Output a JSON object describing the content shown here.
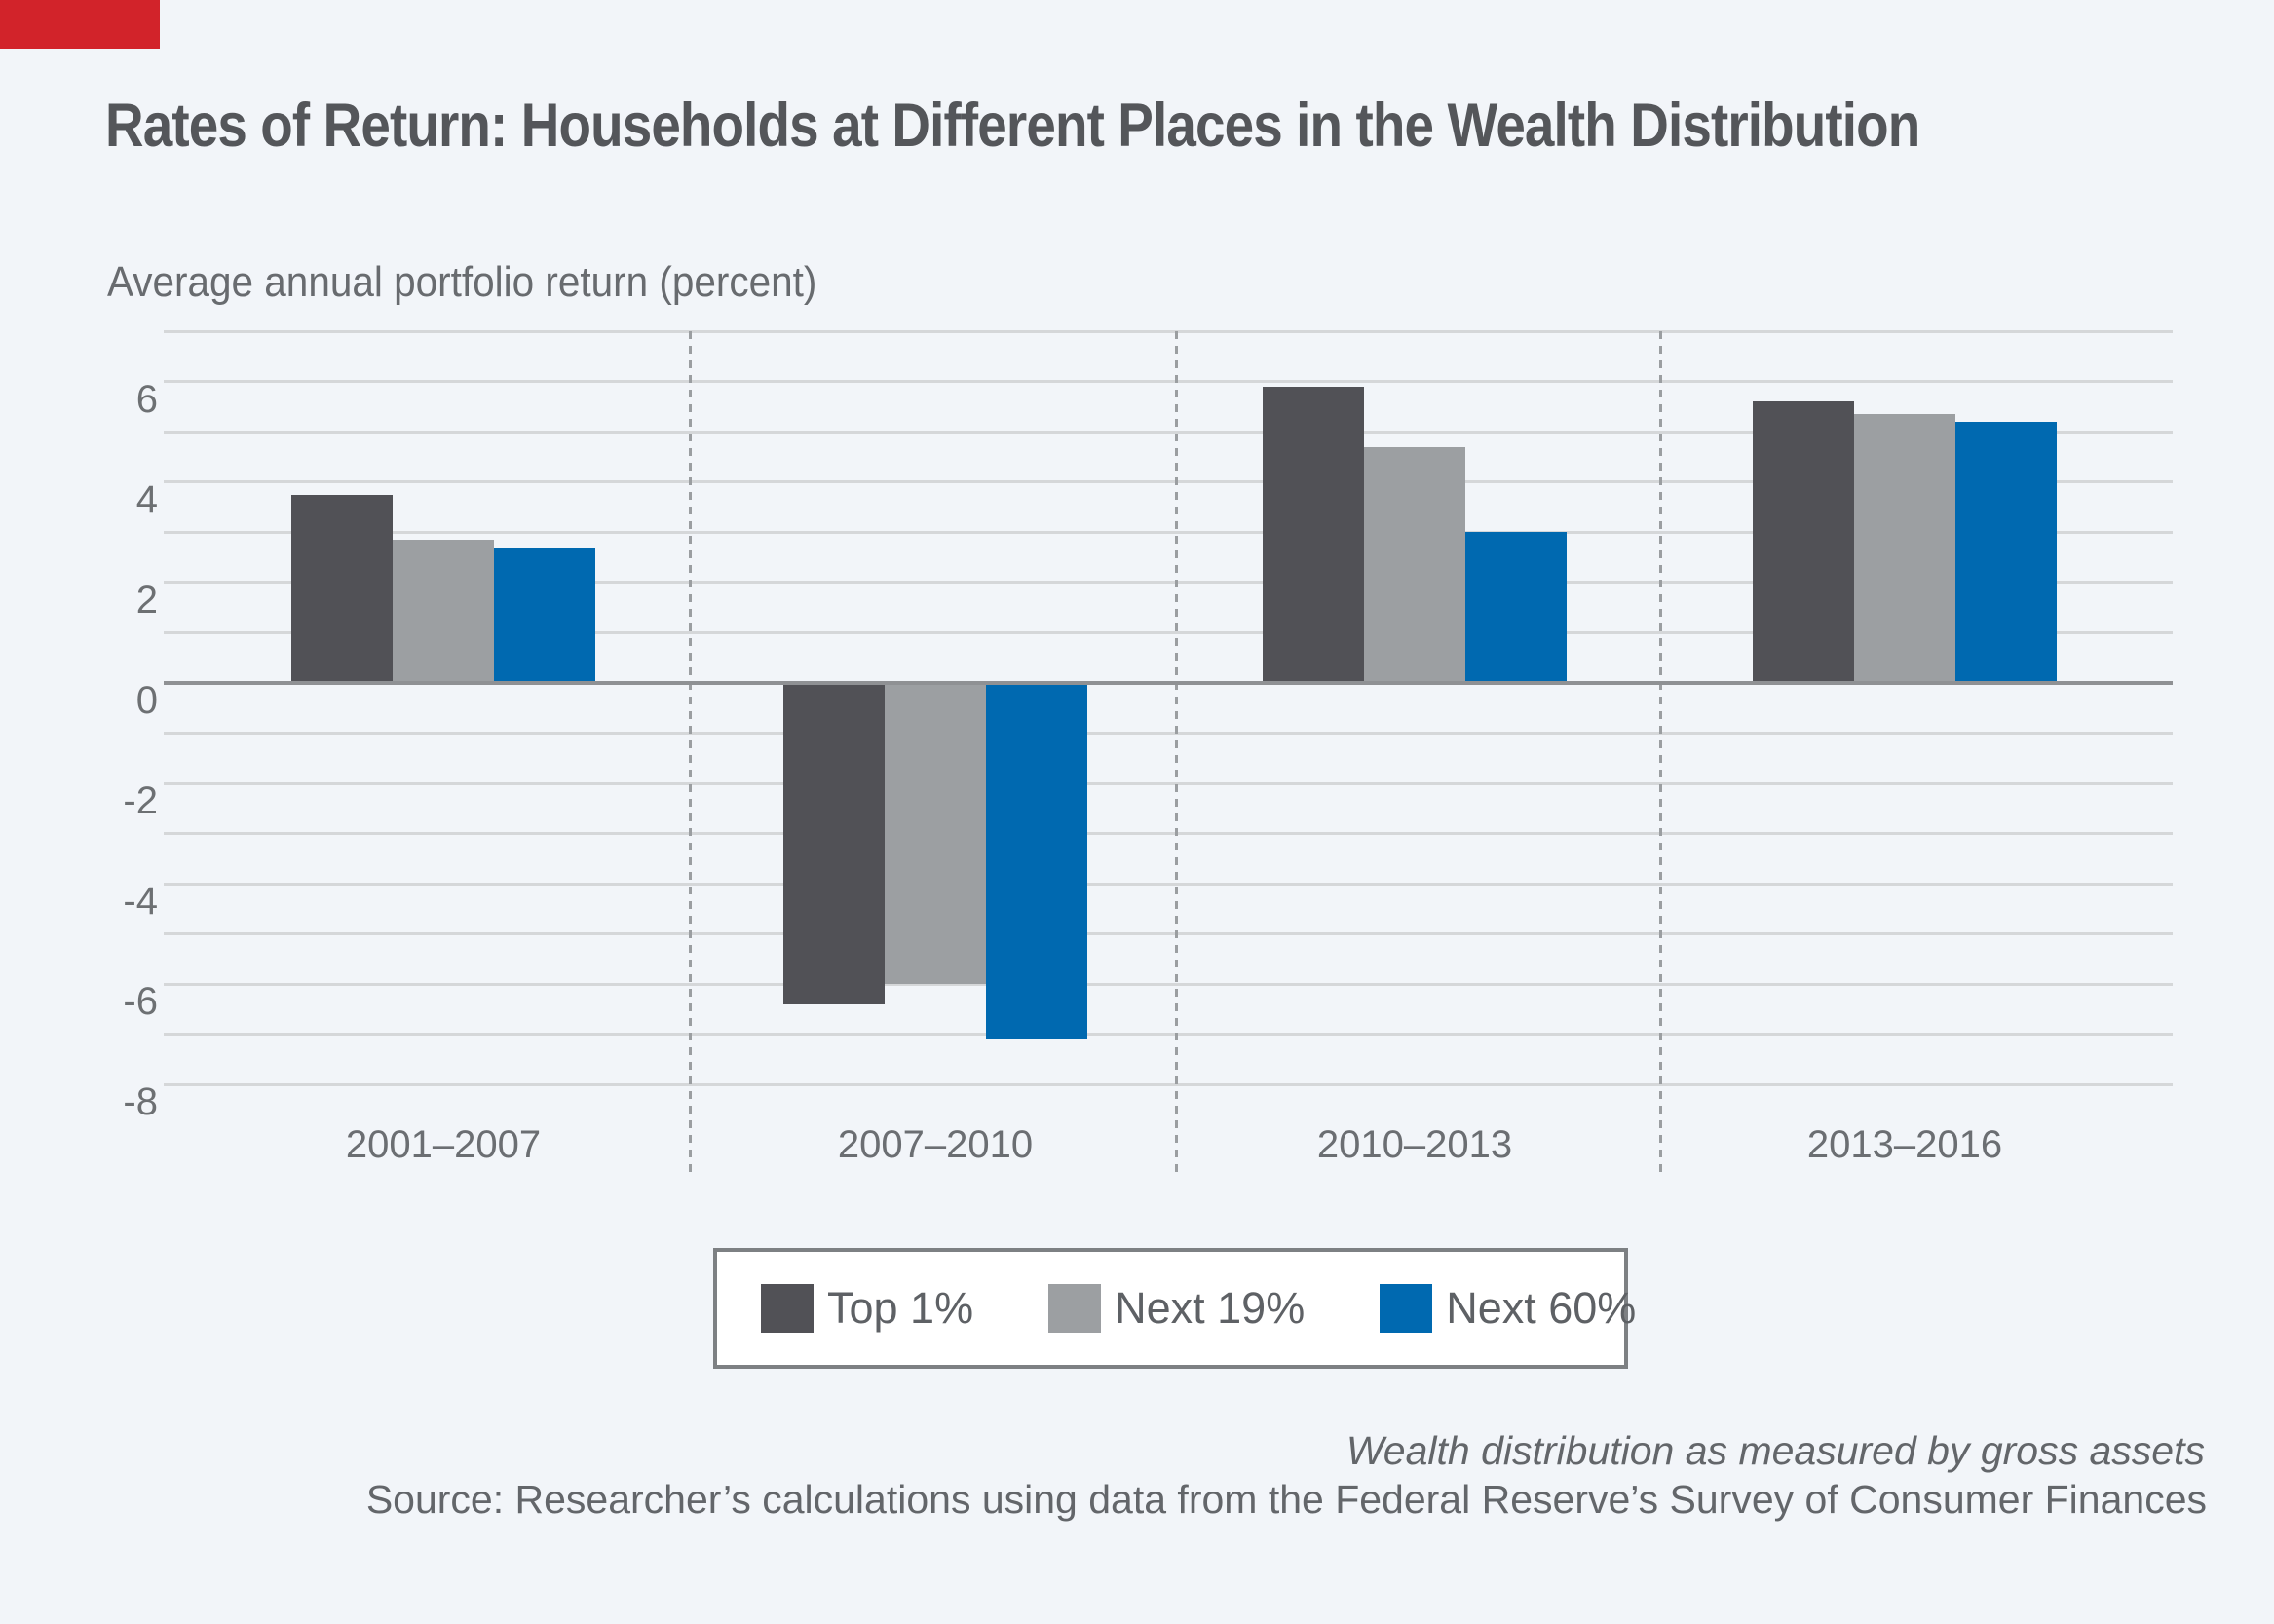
{
  "page": {
    "background": "#f2f5f9",
    "accent_bar_color": "#d2232a"
  },
  "title": "Rates of Return: Households at Different Places in the Wealth Distribution",
  "subtitle": "Average annual portfolio return (percent)",
  "chart_data": {
    "type": "bar",
    "categories": [
      "2001–2007",
      "2007–2010",
      "2010–2013",
      "2013–2016"
    ],
    "series": [
      {
        "name": "Top 1%",
        "color": "#515156",
        "values": [
          3.75,
          -6.4,
          5.9,
          5.6
        ]
      },
      {
        "name": "Next 19%",
        "color": "#9c9fa2",
        "values": [
          2.85,
          -6.0,
          4.7,
          5.35
        ]
      },
      {
        "name": "Next 60%",
        "color": "#0069b0",
        "values": [
          2.7,
          -7.1,
          3.0,
          5.2
        ]
      }
    ],
    "title": "Rates of Return: Households at Different Places in the Wealth Distribution",
    "xlabel": "",
    "ylabel": "Average annual portfolio return (percent)",
    "ylim": [
      -8,
      7
    ],
    "y_tick_labels": [
      6,
      4,
      2,
      0,
      -2,
      -4,
      -6,
      -8
    ],
    "gridline_step": 1,
    "grid": true,
    "legend_position": "bottom-center",
    "colors": {
      "gridline": "#d5d7d9",
      "zero_line": "#8f9194",
      "group_separator": "#9b9ea1"
    }
  },
  "footnote": "Wealth distribution as measured by gross assets",
  "source": "Source: Researcher’s calculations using data from the Federal Reserve’s Survey of Consumer Finances"
}
